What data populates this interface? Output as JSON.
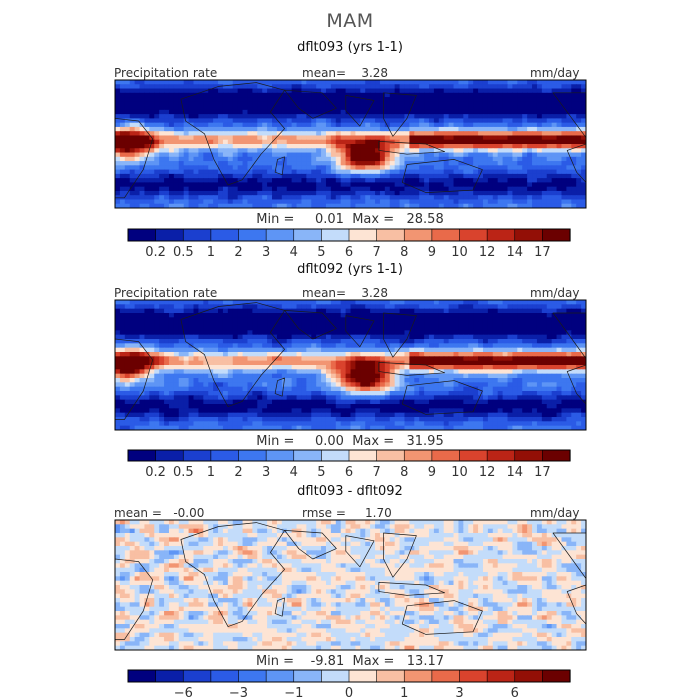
{
  "figure_title": "MAM",
  "colors": {
    "precip_scale": [
      "#00007f",
      "#0a1fa8",
      "#1b3fcf",
      "#2b5be6",
      "#3d77f0",
      "#5e95f5",
      "#89b5f8",
      "#c3dcfa",
      "#fde4d4",
      "#f8bfa3",
      "#f29572",
      "#e96a4a",
      "#d9432d",
      "#bb2416",
      "#930f06",
      "#6b0000"
    ],
    "diff_scale": [
      "#00007f",
      "#0a1fa8",
      "#1b3fcf",
      "#2b5be6",
      "#3d77f0",
      "#5e95f5",
      "#89b5f8",
      "#c3dcfa",
      "#fde4d4",
      "#f8bfa3",
      "#f29572",
      "#e96a4a",
      "#d9432d",
      "#bb2416",
      "#930f06",
      "#6b0000"
    ]
  },
  "panels": [
    {
      "title": "dflt093 (yrs 1-1)",
      "left_label": "Precipitation rate",
      "center_label": "mean=    3.28",
      "right_label": "mm/day",
      "minmax": "Min =     0.01  Max =   28.58",
      "colorbar_ticks": [
        "0.2",
        "0.5",
        "1",
        "2",
        "3",
        "4",
        "5",
        "6",
        "7",
        "8",
        "9",
        "10",
        "12",
        "14",
        "17"
      ],
      "seed": 11
    },
    {
      "title": "dflt092 (yrs 1-1)",
      "left_label": "Precipitation rate",
      "center_label": "mean=    3.28",
      "right_label": "mm/day",
      "minmax": "Min =     0.00  Max =   31.95",
      "colorbar_ticks": [
        "0.2",
        "0.5",
        "1",
        "2",
        "3",
        "4",
        "5",
        "6",
        "7",
        "8",
        "9",
        "10",
        "12",
        "14",
        "17"
      ],
      "seed": 23
    },
    {
      "title": "dflt093 - dflt092",
      "left_label": "mean =   -0.00",
      "center_label": "rmse =     1.70",
      "right_label": "mm/day",
      "minmax": "Min =    -9.81  Max =   13.17",
      "colorbar_ticks": [
        "−6",
        "−3",
        "−1",
        "0",
        "1",
        "3",
        "6"
      ],
      "seed": 37
    }
  ]
}
